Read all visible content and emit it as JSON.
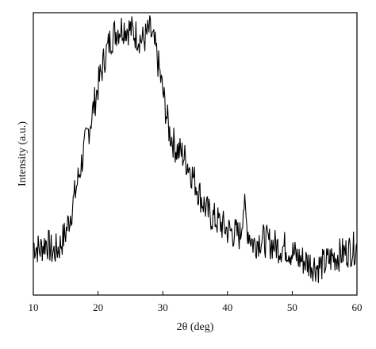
{
  "chart_data": {
    "type": "line",
    "xlabel": "2θ (deg)",
    "ylabel": "Intensity (a.u.)",
    "xlim": [
      10,
      60
    ],
    "ylim": [
      0,
      100
    ],
    "x_ticks": [
      10,
      20,
      30,
      40,
      50,
      60
    ],
    "y_ticks_labeled": false,
    "grid": false,
    "line_color": "#000000",
    "series": [
      {
        "x": [
          10,
          11,
          12,
          13,
          14,
          15,
          16,
          17,
          18,
          19,
          20,
          21,
          22,
          23,
          24,
          25,
          26,
          27,
          28,
          29,
          30,
          31,
          32,
          33,
          34,
          35,
          36,
          37,
          38,
          39,
          40,
          41,
          42,
          42.5,
          43,
          44,
          45,
          46,
          47,
          48,
          49,
          50,
          51,
          52,
          53,
          54,
          55,
          56,
          57,
          58,
          59,
          60
        ],
        "y": [
          18,
          16,
          19,
          15,
          17,
          22,
          31,
          42,
          53,
          63,
          74,
          84,
          91,
          94,
          95,
          94,
          92,
          90,
          94,
          86,
          72,
          58,
          52,
          50,
          46,
          40,
          34,
          29,
          27,
          25,
          23,
          22,
          21,
          33,
          24,
          18,
          20,
          19,
          18,
          17,
          17,
          15,
          13,
          12,
          11,
          10,
          11,
          13,
          14,
          15,
          16,
          17
        ]
      }
    ]
  }
}
